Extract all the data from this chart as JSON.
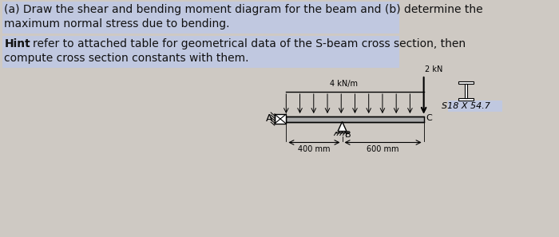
{
  "bg_color": "#cec9c3",
  "text_line1": "(a) Draw the shear and bending moment diagram for the beam and (b) determine the",
  "text_line2": "maximum normal stress due to bending.",
  "hint_label": "Hint",
  "hint_rest": ": refer to attached table for geometrical data of the S-beam cross section, then",
  "hint_line2": "compute cross section constants with them.",
  "highlight_color": "#c0c8e0",
  "text_color": "#111111",
  "load_label": "4 kN/m",
  "force_label": "2 kN",
  "point_A": "A",
  "point_B": "B",
  "point_C": "C",
  "dim_left": "400 mm",
  "dim_right": "600 mm",
  "section_label": "S18 X 54.7",
  "font_size_main": 10,
  "font_size_diagram": 7
}
